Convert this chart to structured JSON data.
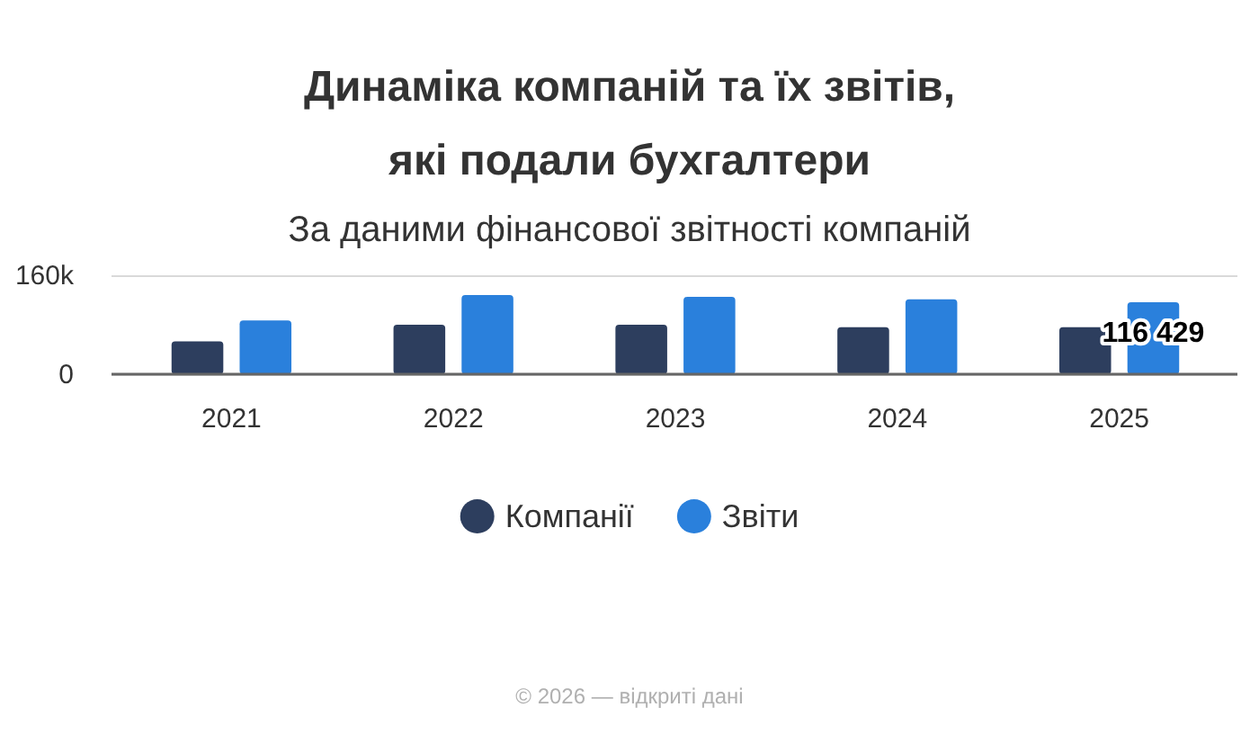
{
  "chart_data": {
    "type": "bar",
    "title": "Динаміка компаній та їх звітів, які подали бухгалтери",
    "subtitle": "За даними фінансової звітності компаній",
    "categories": [
      "2021",
      "2022",
      "2023",
      "2024",
      "2025"
    ],
    "series": [
      {
        "name": "Компанії",
        "color": "#2d3e5e",
        "values": [
          53000,
          80000,
          80000,
          76000,
          76000
        ]
      },
      {
        "name": "Звіти",
        "color": "#2a80dc",
        "values": [
          87000,
          128000,
          125000,
          121000,
          116429
        ],
        "value_labels": [
          null,
          null,
          null,
          null,
          "116 429"
        ]
      }
    ],
    "ylim": [
      0,
      160000
    ],
    "yticks": [
      0,
      {
        "value": 160000,
        "label": "160k"
      }
    ],
    "grid": "y",
    "legend": "bottom",
    "annotations": [
      "© 2026 — відкриті дані"
    ]
  }
}
